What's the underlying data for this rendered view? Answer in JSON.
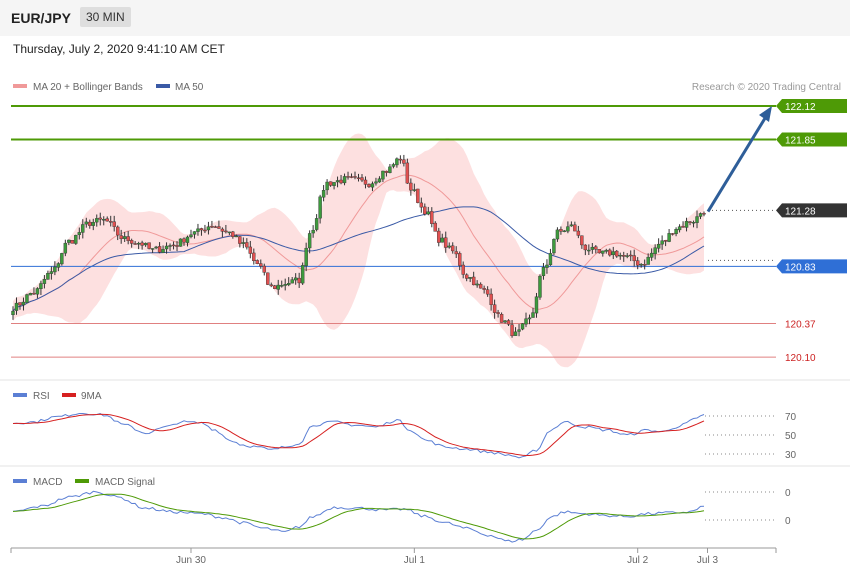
{
  "header": {
    "symbol": "EUR/JPY",
    "period": "30 MIN",
    "timestamp": "Thursday, July 2, 2020 9:41:10 AM CET"
  },
  "chart_data": [
    {
      "type": "candlestick",
      "legend": [
        "MA 20 + Bollinger Bands",
        "MA 50"
      ],
      "colors": {
        "ma20": "#f09999",
        "ma50": "#3a5aa6",
        "bands": "#fcd6d6",
        "up": "#3d9a3d",
        "down": "#e05050"
      },
      "credit": "Research © 2020 Trading Central",
      "x_labels": [
        "Jun 30",
        "Jul 1",
        "Jul 2",
        "Jul 3"
      ],
      "ylim": [
        119.98,
        122.2
      ],
      "levels": [
        {
          "value": 122.12,
          "label": "122.12",
          "kind": "resistance",
          "color": "#4e9a06"
        },
        {
          "value": 121.85,
          "label": "121.85",
          "kind": "resistance",
          "color": "#4e9a06"
        },
        {
          "value": 121.28,
          "label": "121.28",
          "kind": "last",
          "color": "#333333"
        },
        {
          "value": 120.83,
          "label": "120.83",
          "kind": "pivot",
          "color": "#2f6fd6"
        },
        {
          "value": 120.37,
          "label": "120.37",
          "kind": "support",
          "color": "#e08080"
        },
        {
          "value": 120.1,
          "label": "120.10",
          "kind": "support",
          "color": "#e08080"
        }
      ],
      "arrow_target": 122.12,
      "anchors": [
        [
          0,
          120.5
        ],
        [
          6,
          120.62
        ],
        [
          11,
          120.78
        ],
        [
          16,
          121.03
        ],
        [
          22,
          121.18
        ],
        [
          26,
          121.2
        ],
        [
          32,
          121.05
        ],
        [
          36,
          121.02
        ],
        [
          40,
          120.96
        ],
        [
          46,
          121.0
        ],
        [
          52,
          121.1
        ],
        [
          57,
          121.16
        ],
        [
          62,
          121.1
        ],
        [
          66,
          121.0
        ],
        [
          70,
          120.85
        ],
        [
          74,
          120.66
        ],
        [
          79,
          120.7
        ],
        [
          82,
          120.72
        ],
        [
          85,
          121.1
        ],
        [
          90,
          121.5
        ],
        [
          96,
          121.53
        ],
        [
          102,
          121.5
        ],
        [
          107,
          121.6
        ],
        [
          111,
          121.7
        ],
        [
          114,
          121.45
        ],
        [
          118,
          121.28
        ],
        [
          122,
          121.05
        ],
        [
          126,
          120.95
        ],
        [
          130,
          120.75
        ],
        [
          135,
          120.63
        ],
        [
          140,
          120.4
        ],
        [
          144,
          120.28
        ],
        [
          148,
          120.4
        ],
        [
          152,
          120.8
        ],
        [
          156,
          121.1
        ],
        [
          160,
          121.15
        ],
        [
          164,
          120.98
        ],
        [
          168,
          120.93
        ],
        [
          172,
          120.94
        ],
        [
          176,
          120.9
        ],
        [
          180,
          120.85
        ],
        [
          186,
          121.02
        ],
        [
          190,
          121.14
        ],
        [
          195,
          121.2
        ],
        [
          198,
          121.28
        ]
      ]
    },
    {
      "type": "line",
      "panel": "rsi",
      "series": [
        {
          "name": "RSI",
          "color": "#5b7fd4"
        },
        {
          "name": "9MA",
          "color": "#d62020"
        }
      ],
      "ticks": [
        "70",
        "50",
        "30"
      ],
      "ylim": [
        25,
        80
      ],
      "anchors": [
        [
          0,
          62
        ],
        [
          6,
          63
        ],
        [
          12,
          68
        ],
        [
          20,
          72
        ],
        [
          26,
          70
        ],
        [
          32,
          60
        ],
        [
          38,
          52
        ],
        [
          44,
          58
        ],
        [
          48,
          63
        ],
        [
          54,
          62
        ],
        [
          58,
          55
        ],
        [
          62,
          45
        ],
        [
          66,
          40
        ],
        [
          70,
          38
        ],
        [
          74,
          35
        ],
        [
          78,
          38
        ],
        [
          82,
          42
        ],
        [
          86,
          60
        ],
        [
          92,
          63
        ],
        [
          98,
          60
        ],
        [
          104,
          58
        ],
        [
          110,
          65
        ],
        [
          114,
          55
        ],
        [
          118,
          45
        ],
        [
          124,
          38
        ],
        [
          130,
          36
        ],
        [
          136,
          33
        ],
        [
          142,
          30
        ],
        [
          146,
          27
        ],
        [
          150,
          35
        ],
        [
          154,
          55
        ],
        [
          158,
          63
        ],
        [
          164,
          58
        ],
        [
          170,
          55
        ],
        [
          176,
          50
        ],
        [
          182,
          55
        ],
        [
          186,
          53
        ],
        [
          190,
          58
        ],
        [
          196,
          66
        ],
        [
          198,
          71
        ]
      ]
    },
    {
      "type": "line",
      "panel": "macd",
      "series": [
        {
          "name": "MACD",
          "color": "#5b7fd4"
        },
        {
          "name": "MACD Signal",
          "color": "#4e9a06"
        }
      ],
      "ticks": [
        "0",
        "0"
      ],
      "ylim": [
        -0.36,
        0.26
      ],
      "anchors": [
        [
          0,
          0.0
        ],
        [
          8,
          0.06
        ],
        [
          16,
          0.16
        ],
        [
          24,
          0.22
        ],
        [
          30,
          0.16
        ],
        [
          38,
          0.04
        ],
        [
          46,
          0.0
        ],
        [
          54,
          -0.02
        ],
        [
          60,
          -0.06
        ],
        [
          66,
          -0.12
        ],
        [
          72,
          -0.18
        ],
        [
          78,
          -0.22
        ],
        [
          82,
          -0.16
        ],
        [
          86,
          -0.05
        ],
        [
          92,
          0.05
        ],
        [
          100,
          0.04
        ],
        [
          106,
          0.02
        ],
        [
          112,
          0.03
        ],
        [
          118,
          -0.05
        ],
        [
          124,
          -0.12
        ],
        [
          130,
          -0.18
        ],
        [
          136,
          -0.25
        ],
        [
          142,
          -0.32
        ],
        [
          146,
          -0.3
        ],
        [
          150,
          -0.2
        ],
        [
          154,
          -0.06
        ],
        [
          158,
          0.0
        ],
        [
          164,
          -0.02
        ],
        [
          170,
          -0.04
        ],
        [
          176,
          -0.05
        ],
        [
          182,
          -0.02
        ],
        [
          188,
          -0.01
        ],
        [
          194,
          0.0
        ],
        [
          198,
          0.06
        ]
      ]
    }
  ]
}
